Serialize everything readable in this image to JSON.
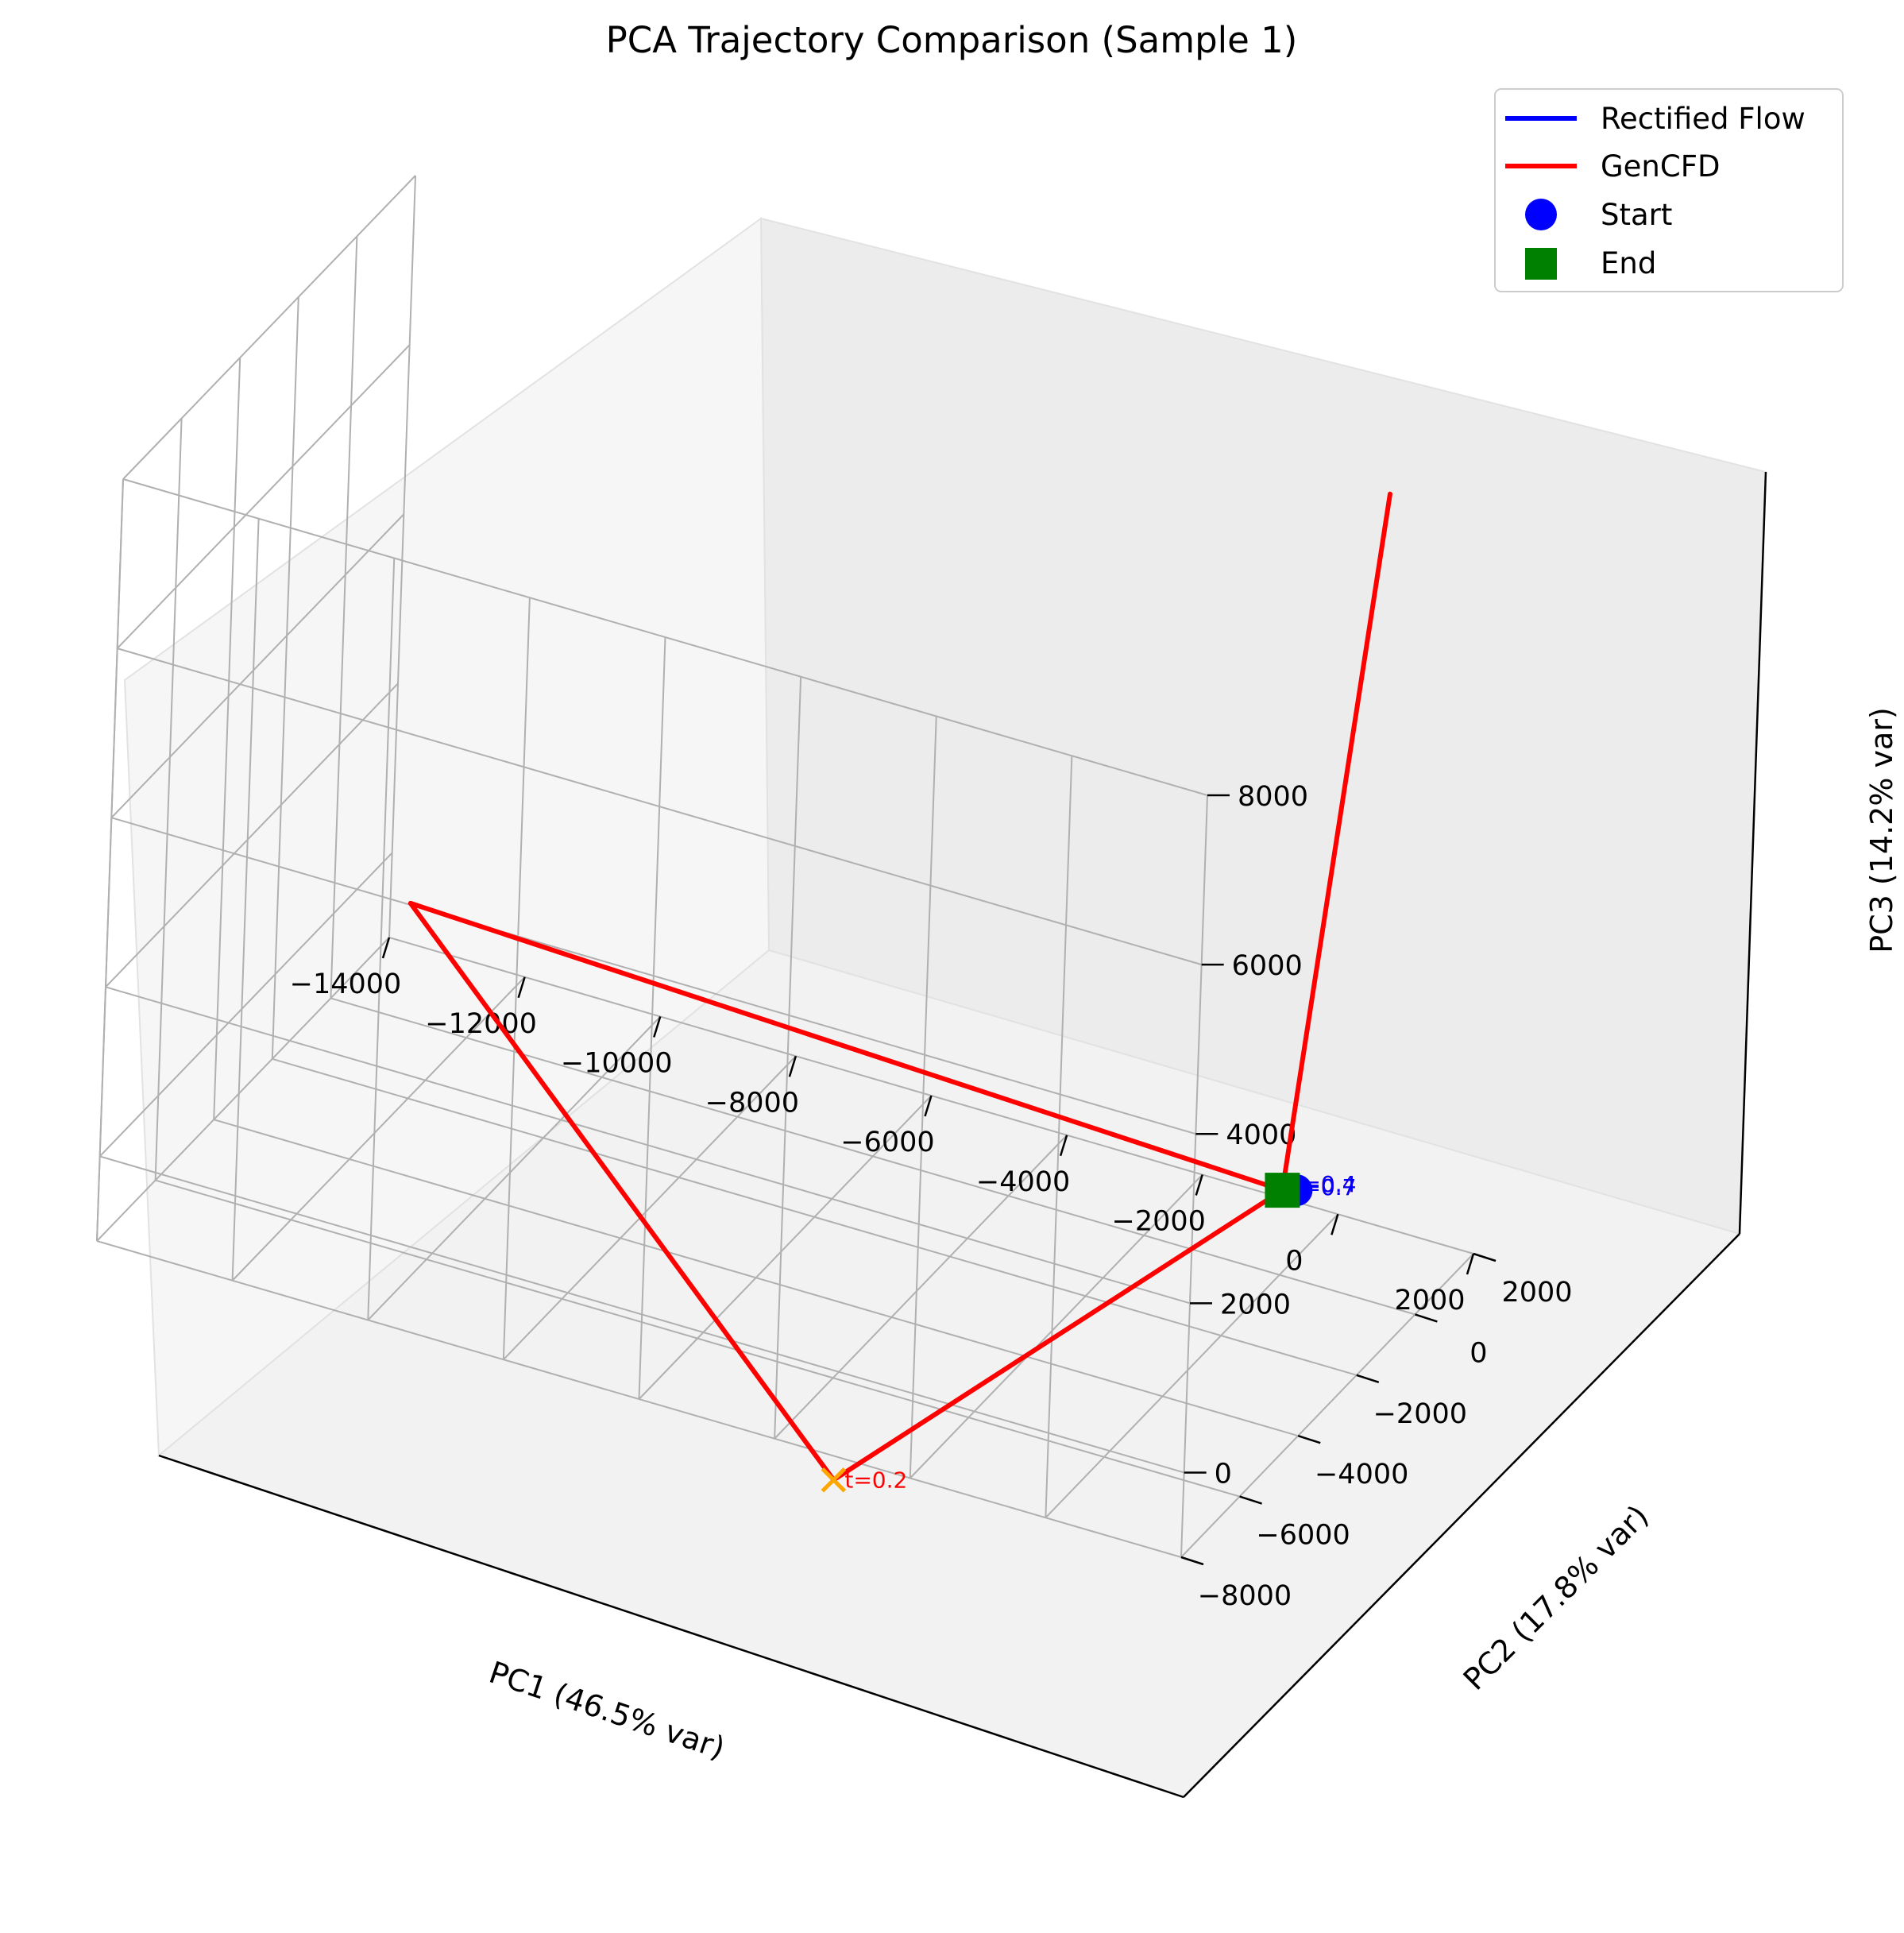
{
  "chart_data": {
    "type": "line",
    "projection": "3d",
    "title": "PCA Trajectory Comparison (Sample 1)",
    "xlabel": "PC1 (46.5% var)",
    "ylabel": "PC2 (17.8% var)",
    "zlabel": "PC3 (14.2% var)",
    "x_ticks": [
      "−14000",
      "−12000",
      "−10000",
      "−8000",
      "−6000",
      "−4000",
      "−2000",
      "0",
      "2000"
    ],
    "y_ticks": [
      "−8000",
      "−6000",
      "−4000",
      "−2000",
      "0",
      "2000"
    ],
    "z_ticks": [
      "0",
      "2000",
      "4000",
      "6000",
      "8000"
    ],
    "xlim": [
      -14000,
      2000
    ],
    "ylim": [
      -8000,
      2000
    ],
    "zlim": [
      -1000,
      8000
    ],
    "grid": true,
    "legend_position": "top-right",
    "legend": [
      {
        "label": "Rectified Flow",
        "kind": "line",
        "color": "#0000ff"
      },
      {
        "label": "GenCFD",
        "kind": "line",
        "color": "#ff0000"
      },
      {
        "label": "Start",
        "kind": "circle",
        "color": "#0000ff"
      },
      {
        "label": "End",
        "kind": "square",
        "color": "#008000"
      }
    ],
    "series": [
      {
        "name": "Rectified Flow",
        "color": "#0000ff",
        "points": [
          [
            0,
            0,
            0
          ],
          [
            0,
            0,
            0
          ]
        ]
      },
      {
        "name": "GenCFD",
        "color": "#ff0000",
        "points": [
          [
            0,
            0,
            0
          ],
          [
            -2500,
            -9500,
            -600
          ],
          [
            -13500,
            1500,
            -300
          ],
          [
            0,
            0,
            0
          ],
          [
            400,
            2000,
            7600
          ],
          [
            0,
            0,
            0
          ]
        ]
      }
    ],
    "markers": [
      {
        "type": "start",
        "color": "#0000ff",
        "point": [
          0,
          0,
          0
        ]
      },
      {
        "type": "end",
        "color": "#008000",
        "point": [
          0,
          0,
          0
        ]
      },
      {
        "type": "x",
        "color": "#ffa500",
        "point": [
          -2500,
          -9500,
          -600
        ]
      }
    ],
    "annotations": [
      {
        "text": "t=0.2",
        "color": "#ff0000",
        "point": [
          -2500,
          -9500,
          -600
        ]
      },
      {
        "text": "t=0.4",
        "color": "#ff0000",
        "point": [
          0,
          0,
          0
        ]
      },
      {
        "text": "t=0.7",
        "color": "#ff0000",
        "point": [
          0,
          0,
          0
        ]
      },
      {
        "text": "t=0.4",
        "color": "#0000ff",
        "point": [
          0,
          0,
          0
        ]
      },
      {
        "text": "t=0.7",
        "color": "#0000ff",
        "point": [
          0,
          0,
          0
        ]
      }
    ]
  }
}
